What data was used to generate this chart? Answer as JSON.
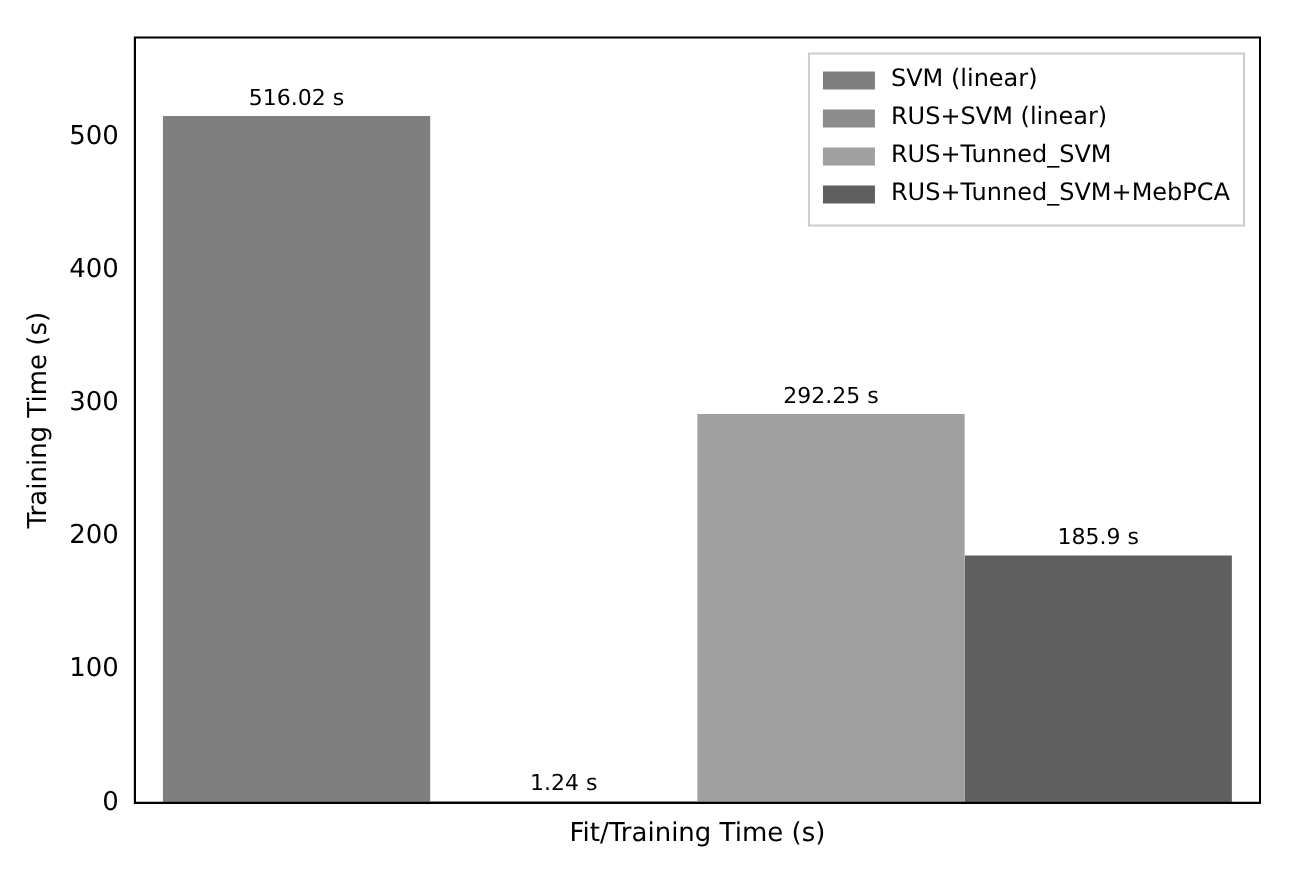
{
  "chart_data": {
    "type": "bar",
    "ylabel": "Training Time (s)",
    "categories": [
      "Fit/Training Time (s)"
    ],
    "series": [
      {
        "name": "SVM (linear)",
        "color": "#7f7f7f",
        "values": [
          516.02
        ],
        "value_labels": [
          "516.02 s"
        ]
      },
      {
        "name": "RUS+SVM (linear)",
        "color": "#8c8c8c",
        "values": [
          1.24
        ],
        "value_labels": [
          "1.24 s"
        ]
      },
      {
        "name": "RUS+Tunned_SVM",
        "color": "#a0a0a0",
        "values": [
          292.25
        ],
        "value_labels": [
          "292.25 s"
        ]
      },
      {
        "name": "RUS+Tunned_SVM+MebPCA",
        "color": "#5f5f5f",
        "values": [
          185.9
        ],
        "value_labels": [
          "185.9 s"
        ]
      }
    ],
    "ylim": [
      0,
      575
    ],
    "yticks": [
      0,
      100,
      200,
      300,
      400,
      500
    ],
    "grid": false,
    "legend": "top right"
  }
}
